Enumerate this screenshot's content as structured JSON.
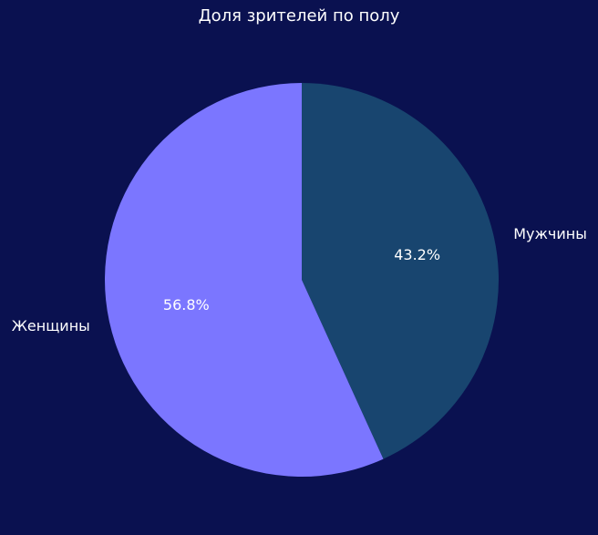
{
  "chart_data": {
    "type": "pie",
    "title": "Доля зрителей по полу",
    "slices": [
      {
        "label": "Мужчины",
        "value": 43.2,
        "pct_label": "43.2%",
        "color": "#18456f"
      },
      {
        "label": "Женщины",
        "value": 56.8,
        "pct_label": "56.8%",
        "color": "#7b76ff"
      }
    ],
    "start_angle": "top (12 o'clock)",
    "direction": "clockwise",
    "background": "#0a1150",
    "text_color": "#ffffff"
  }
}
